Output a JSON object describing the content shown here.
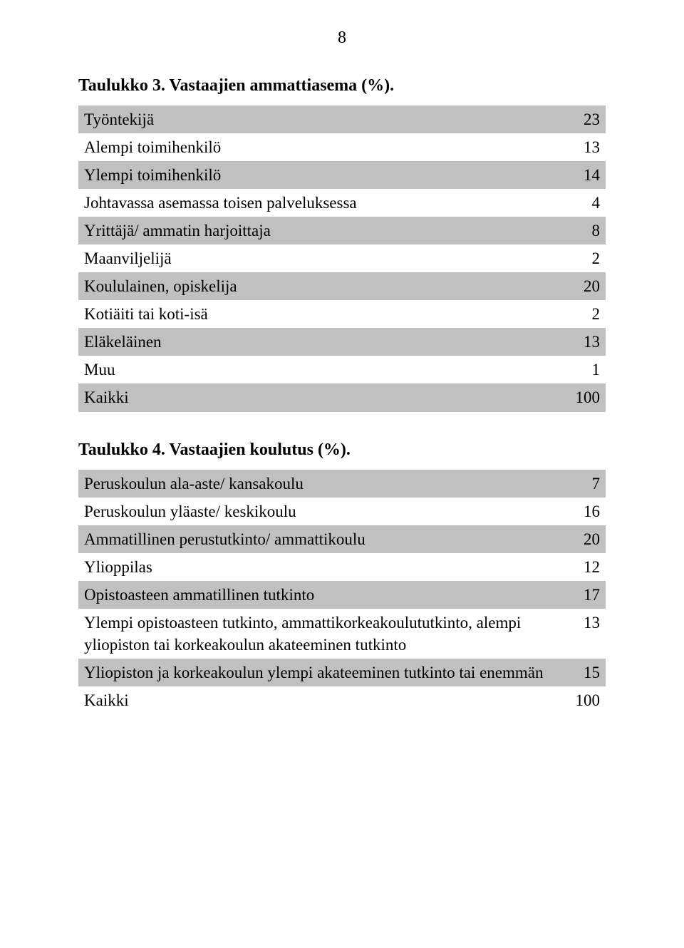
{
  "page": {
    "number": "8"
  },
  "table1": {
    "caption": "Taulukko 3. Vastaajien ammattiasema (%).",
    "rows": [
      {
        "label": "Työntekijä",
        "value": "23",
        "shaded": true
      },
      {
        "label": "Alempi toimihenkilö",
        "value": "13",
        "shaded": false
      },
      {
        "label": "Ylempi toimihenkilö",
        "value": "14",
        "shaded": true
      },
      {
        "label": "Johtavassa asemassa toisen palveluksessa",
        "value": "4",
        "shaded": false
      },
      {
        "label": "Yrittäjä/ ammatin harjoittaja",
        "value": "8",
        "shaded": true
      },
      {
        "label": "Maanviljelijä",
        "value": "2",
        "shaded": false
      },
      {
        "label": "Koululainen, opiskelija",
        "value": "20",
        "shaded": true
      },
      {
        "label": "Kotiäiti tai koti-isä",
        "value": "2",
        "shaded": false
      },
      {
        "label": "Eläkeläinen",
        "value": "13",
        "shaded": true
      },
      {
        "label": "Muu",
        "value": "1",
        "shaded": false
      },
      {
        "label": "Kaikki",
        "value": "100",
        "shaded": true
      }
    ]
  },
  "table2": {
    "caption": "Taulukko 4. Vastaajien koulutus (%).",
    "rows": [
      {
        "label": "Peruskoulun ala-aste/ kansakoulu",
        "value": "7",
        "shaded": true
      },
      {
        "label": "Peruskoulun yläaste/ keskikoulu",
        "value": "16",
        "shaded": false
      },
      {
        "label": "Ammatillinen perustutkinto/ ammattikoulu",
        "value": "20",
        "shaded": true
      },
      {
        "label": "Ylioppilas",
        "value": "12",
        "shaded": false
      },
      {
        "label": "Opistoasteen ammatillinen tutkinto",
        "value": "17",
        "shaded": true
      },
      {
        "label": "Ylempi opistoasteen tutkinto, ammattikorkeakoulututkinto, alempi yliopiston tai korkeakoulun akateeminen tutkinto",
        "value": "13",
        "shaded": false
      },
      {
        "label": "Yliopiston ja korkeakoulun ylempi akateeminen tutkinto tai enemmän",
        "value": "15",
        "shaded": true
      },
      {
        "label": "Kaikki",
        "value": "100",
        "shaded": false
      }
    ]
  },
  "style": {
    "body_bg": "#ffffff",
    "text_color": "#000000",
    "shade_color": "#c0c0c0",
    "font_family": "Times New Roman",
    "caption_fontsize_pt": 18,
    "body_fontsize_pt": 17
  }
}
